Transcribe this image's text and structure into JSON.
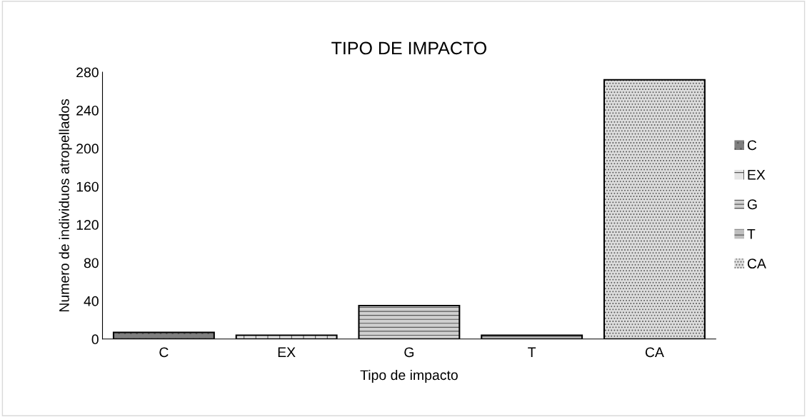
{
  "chart_data": {
    "type": "bar",
    "title": "TIPO DE IMPACTO",
    "xlabel": "Tipo de impacto",
    "ylabel": "Numero de individuos atropellados",
    "categories": [
      "C",
      "EX",
      "G",
      "T",
      "CA"
    ],
    "series": [
      {
        "name": "C",
        "color": "#7f7f7f",
        "values": [
          7,
          null,
          null,
          null,
          null
        ]
      },
      {
        "name": "EX",
        "color": "#e6e6e6",
        "values": [
          null,
          4,
          null,
          null,
          null
        ]
      },
      {
        "name": "G",
        "color": "#d0d0d0",
        "values": [
          null,
          null,
          35,
          null,
          null
        ]
      },
      {
        "name": "T",
        "color": "#bfbfbf",
        "values": [
          null,
          null,
          null,
          4,
          null
        ]
      },
      {
        "name": "CA",
        "color": "#dcdcdc",
        "values": [
          null,
          null,
          null,
          null,
          272
        ]
      }
    ],
    "ylim": [
      0,
      280
    ],
    "yticks": [
      0,
      40,
      80,
      120,
      160,
      200,
      240,
      280
    ],
    "grid": false,
    "legend": "right"
  }
}
